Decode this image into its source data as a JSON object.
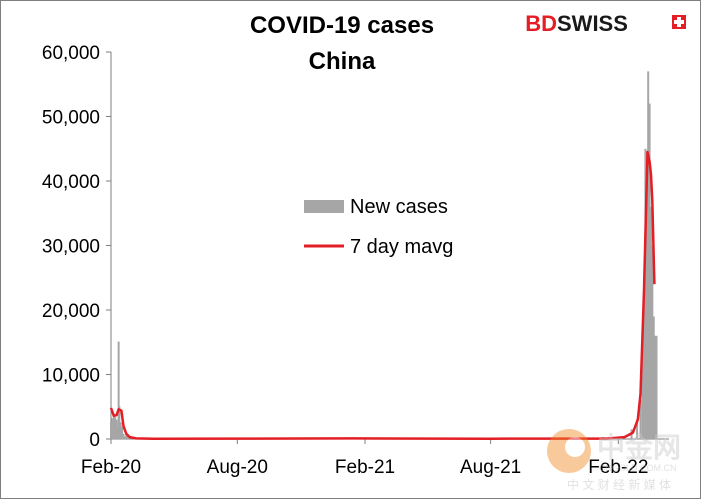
{
  "brand": {
    "logo_text": "BDSWISS",
    "logo_prefix": "BD",
    "logo_suffix": "SWISS",
    "brand_color": "#e31e24"
  },
  "watermark": {
    "text": "中金网",
    "subtext": "中 文 财 经 新 媒 体",
    "url": "CNGOLD.COM.CN"
  },
  "chart_data": {
    "type": "bar+line",
    "title": "COVID-19 cases",
    "subtitle": "China",
    "xlabel": "",
    "ylabel": "",
    "ylim": [
      0,
      60000
    ],
    "y_ticks": [
      0,
      10000,
      20000,
      30000,
      40000,
      50000,
      60000
    ],
    "y_tick_labels": [
      "0",
      "10,000",
      "20,000",
      "30,000",
      "40,000",
      "50,000",
      "60,000"
    ],
    "x_range": [
      "2020-02-01",
      "2022-04-15"
    ],
    "x_ticks": [
      "2020-02-01",
      "2020-08-01",
      "2021-02-01",
      "2021-08-01",
      "2022-02-01"
    ],
    "x_tick_labels": [
      "Feb-20",
      "Aug-20",
      "Feb-21",
      "Aug-21",
      "Feb-22"
    ],
    "grid": false,
    "legend_position": "center",
    "series": [
      {
        "name": "New cases",
        "kind": "bar",
        "color": "#a6a6a6",
        "points": [
          [
            "2020-02-01",
            2600
          ],
          [
            "2020-02-03",
            3200
          ],
          [
            "2020-02-05",
            3900
          ],
          [
            "2020-02-07",
            3400
          ],
          [
            "2020-02-09",
            3000
          ],
          [
            "2020-02-11",
            2000
          ],
          [
            "2020-02-12",
            15100
          ],
          [
            "2020-02-13",
            5100
          ],
          [
            "2020-02-15",
            2600
          ],
          [
            "2020-02-17",
            1900
          ],
          [
            "2020-02-19",
            800
          ],
          [
            "2020-02-21",
            400
          ],
          [
            "2020-02-23",
            600
          ],
          [
            "2020-02-25",
            400
          ],
          [
            "2020-02-28",
            300
          ],
          [
            "2020-03-03",
            150
          ],
          [
            "2020-03-10",
            50
          ],
          [
            "2021-01-15",
            140
          ],
          [
            "2022-01-10",
            300
          ],
          [
            "2022-02-10",
            500
          ],
          [
            "2022-02-20",
            1500
          ],
          [
            "2022-02-28",
            3000
          ],
          [
            "2022-03-05",
            6000
          ],
          [
            "2022-03-08",
            14000
          ],
          [
            "2022-03-10",
            25000
          ],
          [
            "2022-03-12",
            45000
          ],
          [
            "2022-03-14",
            38000
          ],
          [
            "2022-03-16",
            57000
          ],
          [
            "2022-03-18",
            52000
          ],
          [
            "2022-03-20",
            36000
          ],
          [
            "2022-03-22",
            30000
          ],
          [
            "2022-03-24",
            19000
          ],
          [
            "2022-03-26",
            16000
          ],
          [
            "2022-03-28",
            16000
          ]
        ]
      },
      {
        "name": "7 day mavg",
        "kind": "line",
        "color": "#e31e24",
        "points": [
          [
            "2020-02-01",
            4800
          ],
          [
            "2020-02-05",
            3600
          ],
          [
            "2020-02-09",
            3700
          ],
          [
            "2020-02-12",
            4600
          ],
          [
            "2020-02-16",
            4400
          ],
          [
            "2020-02-19",
            2000
          ],
          [
            "2020-02-23",
            800
          ],
          [
            "2020-02-28",
            300
          ],
          [
            "2020-03-08",
            100
          ],
          [
            "2020-04-01",
            30
          ],
          [
            "2020-08-01",
            60
          ],
          [
            "2021-01-15",
            100
          ],
          [
            "2021-08-01",
            40
          ],
          [
            "2022-01-15",
            60
          ],
          [
            "2022-02-10",
            300
          ],
          [
            "2022-02-22",
            1000
          ],
          [
            "2022-03-01",
            3000
          ],
          [
            "2022-03-05",
            7000
          ],
          [
            "2022-03-10",
            23000
          ],
          [
            "2022-03-15",
            44500
          ],
          [
            "2022-03-18",
            43000
          ],
          [
            "2022-03-20",
            41000
          ],
          [
            "2022-03-22",
            37000
          ],
          [
            "2022-03-25",
            24000
          ]
        ]
      }
    ]
  }
}
